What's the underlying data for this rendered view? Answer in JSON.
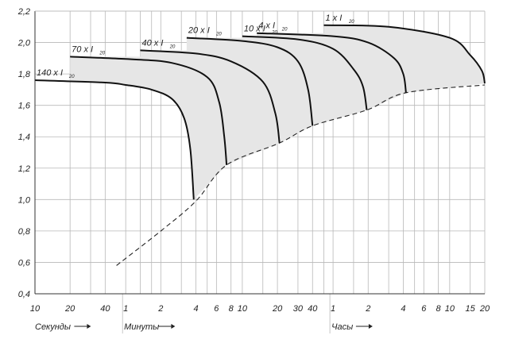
{
  "chart_data": {
    "type": "line",
    "title": "",
    "xlabel": "",
    "ylabel": "",
    "grid": true,
    "ylim": [
      0.4,
      2.2
    ],
    "y_ticks": [
      "0,4",
      "0,6",
      "0,8",
      "1,0",
      "1,2",
      "1,4",
      "1,6",
      "1,8",
      "2,0",
      "2,2"
    ],
    "x_scale": "log",
    "x_unit": "seconds",
    "xlim_seconds": [
      10,
      72000
    ],
    "x_tick_groups": [
      {
        "label": "Секунды",
        "arrow": "→",
        "ticks": [
          {
            "label": "10",
            "seconds": 10
          },
          {
            "label": "20",
            "seconds": 20
          },
          {
            "label": "40",
            "seconds": 40
          }
        ]
      },
      {
        "label": "Минуты",
        "arrow": "→",
        "ticks": [
          {
            "label": "1",
            "seconds": 60
          },
          {
            "label": "2",
            "seconds": 120
          },
          {
            "label": "4",
            "seconds": 240
          },
          {
            "label": "6",
            "seconds": 360
          },
          {
            "label": "8",
            "seconds": 480
          },
          {
            "label": "10",
            "seconds": 600
          },
          {
            "label": "20",
            "seconds": 1200
          },
          {
            "label": "30",
            "seconds": 1800
          },
          {
            "label": "40",
            "seconds": 2400
          }
        ]
      },
      {
        "label": "Часы",
        "arrow": "→",
        "ticks": [
          {
            "label": "1",
            "seconds": 3600
          },
          {
            "label": "2",
            "seconds": 7200
          },
          {
            "label": "4",
            "seconds": 14400
          },
          {
            "label": "6",
            "seconds": 21600
          },
          {
            "label": "8",
            "seconds": 28800
          },
          {
            "label": "10",
            "seconds": 36000
          },
          {
            "label": "15",
            "seconds": 54000
          },
          {
            "label": "20",
            "seconds": 72000
          }
        ]
      }
    ],
    "extra_gridlines_seconds": [
      30,
      80,
      100,
      180,
      300,
      900,
      3000,
      5400,
      10800,
      18000
    ],
    "series": [
      {
        "label": "140 x I",
        "sub": "20",
        "points": [
          [
            10,
            1.76
          ],
          [
            40,
            1.745
          ],
          [
            60,
            1.73
          ],
          [
            100,
            1.7
          ],
          [
            150,
            1.64
          ],
          [
            190,
            1.52
          ],
          [
            215,
            1.32
          ],
          [
            230,
            1.0
          ]
        ]
      },
      {
        "label": "70 x I",
        "sub": "20",
        "points": [
          [
            20,
            1.91
          ],
          [
            60,
            1.895
          ],
          [
            150,
            1.87
          ],
          [
            300,
            1.78
          ],
          [
            380,
            1.62
          ],
          [
            420,
            1.4
          ],
          [
            440,
            1.22
          ]
        ]
      },
      {
        "label": "40 x I",
        "sub": "20",
        "points": [
          [
            80,
            1.95
          ],
          [
            240,
            1.93
          ],
          [
            480,
            1.88
          ],
          [
            900,
            1.75
          ],
          [
            1150,
            1.55
          ],
          [
            1250,
            1.36
          ]
        ]
      },
      {
        "label": "20 x I",
        "sub": "20",
        "points": [
          [
            200,
            2.03
          ],
          [
            600,
            2.01
          ],
          [
            1200,
            1.97
          ],
          [
            1800,
            1.88
          ],
          [
            2200,
            1.7
          ],
          [
            2400,
            1.47
          ]
        ]
      },
      {
        "label": "10 x I",
        "sub": "20",
        "points": [
          [
            600,
            2.04
          ],
          [
            1800,
            2.02
          ],
          [
            3600,
            1.96
          ],
          [
            5400,
            1.83
          ],
          [
            6500,
            1.72
          ],
          [
            7000,
            1.57
          ]
        ]
      },
      {
        "label": "4 x I",
        "sub": "20",
        "points": [
          [
            800,
            2.06
          ],
          [
            3600,
            2.04
          ],
          [
            7200,
            2.0
          ],
          [
            12000,
            1.9
          ],
          [
            14400,
            1.8
          ],
          [
            15200,
            1.68
          ]
        ]
      },
      {
        "label": "1 x I",
        "sub": "20",
        "points": [
          [
            3000,
            2.11
          ],
          [
            10800,
            2.1
          ],
          [
            36000,
            2.03
          ],
          [
            54000,
            1.92
          ],
          [
            68000,
            1.82
          ],
          [
            72000,
            1.74
          ]
        ]
      }
    ],
    "limit_curve": {
      "style": "dashed",
      "points": [
        [
          50,
          0.58
        ],
        [
          120,
          0.8
        ],
        [
          240,
          0.99
        ],
        [
          440,
          1.22
        ],
        [
          1250,
          1.36
        ],
        [
          2400,
          1.47
        ],
        [
          7000,
          1.57
        ],
        [
          15200,
          1.68
        ],
        [
          72000,
          1.73
        ]
      ]
    },
    "shading": {
      "color": "#e8e8e8",
      "stroke": "#9a9a9a"
    },
    "colors": {
      "curve": "#111111",
      "grid": "#b8b8b8",
      "axis": "#333333",
      "fill": "#e6e6e6"
    }
  }
}
